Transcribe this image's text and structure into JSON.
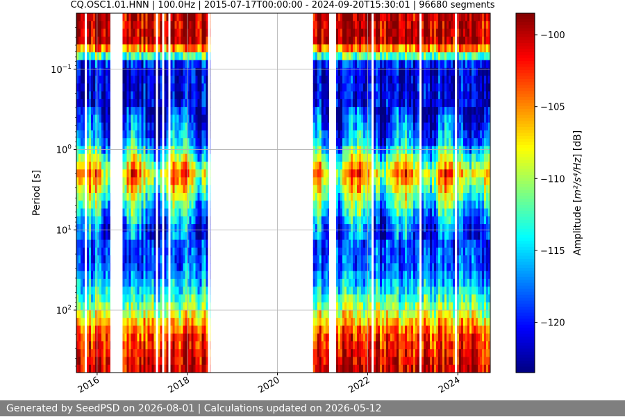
{
  "chart_data": {
    "type": "heatmap",
    "title": "CQ.OSC1.01.HNN | 100.0Hz | 2015-07-17T00:00:00 - 2024-09-20T15:30:01 | 96680 segments",
    "ylabel": "Period [s]",
    "y_scale": "log",
    "y_axis_inverted": true,
    "ylim": [
      0.02,
      600
    ],
    "y_ticks": [
      {
        "value": 0.1,
        "base": "10",
        "exp": "−1"
      },
      {
        "value": 1,
        "base": "10",
        "exp": "0"
      },
      {
        "value": 10,
        "base": "10",
        "exp": "1"
      },
      {
        "value": 100,
        "base": "10",
        "exp": "2"
      }
    ],
    "xlim": [
      "2015-07-17",
      "2024-09-20"
    ],
    "x_ticks": [
      "2016",
      "2018",
      "2020",
      "2022",
      "2024"
    ],
    "grid": true,
    "colorbar": {
      "colormap": "jet",
      "label_text": "Amplitude [",
      "label_math": "m²/s⁴/Hz",
      "label_suffix": "] [dB]",
      "range": [
        -123.5,
        -98.5
      ],
      "ticks": [
        "−100",
        "−105",
        "−110",
        "−115",
        "−120"
      ],
      "tick_values": [
        -100,
        -105,
        -110,
        -115,
        -120
      ]
    },
    "data_periods": [
      {
        "start": "2015-07-17",
        "end": "2016-04-15"
      },
      {
        "start": "2016-07-25",
        "end": "2018-07-05"
      },
      {
        "start": "2020-10-15",
        "end": "2021-02-20"
      },
      {
        "start": "2021-04-20",
        "end": "2024-09-20"
      }
    ],
    "amplitude_profile_db": [
      {
        "period": 0.02,
        "db": -100
      },
      {
        "period": 0.045,
        "db": -100
      },
      {
        "period": 0.055,
        "db": -105
      },
      {
        "period": 0.07,
        "db": -113
      },
      {
        "period": 0.09,
        "db": -121
      },
      {
        "period": 0.3,
        "db": -121
      },
      {
        "period": 0.8,
        "db": -117
      },
      {
        "period": 2,
        "db": -106
      },
      {
        "period": 4,
        "db": -112
      },
      {
        "period": 10,
        "db": -119
      },
      {
        "period": 30,
        "db": -118
      },
      {
        "period": 60,
        "db": -114
      },
      {
        "period": 120,
        "db": -108
      },
      {
        "period": 200,
        "db": -103
      },
      {
        "period": 600,
        "db": -100
      }
    ],
    "segments": 96680
  },
  "footer": {
    "text": "Generated by SeedPSD on 2026-08-01 | Calculations updated on 2026-05-12"
  }
}
